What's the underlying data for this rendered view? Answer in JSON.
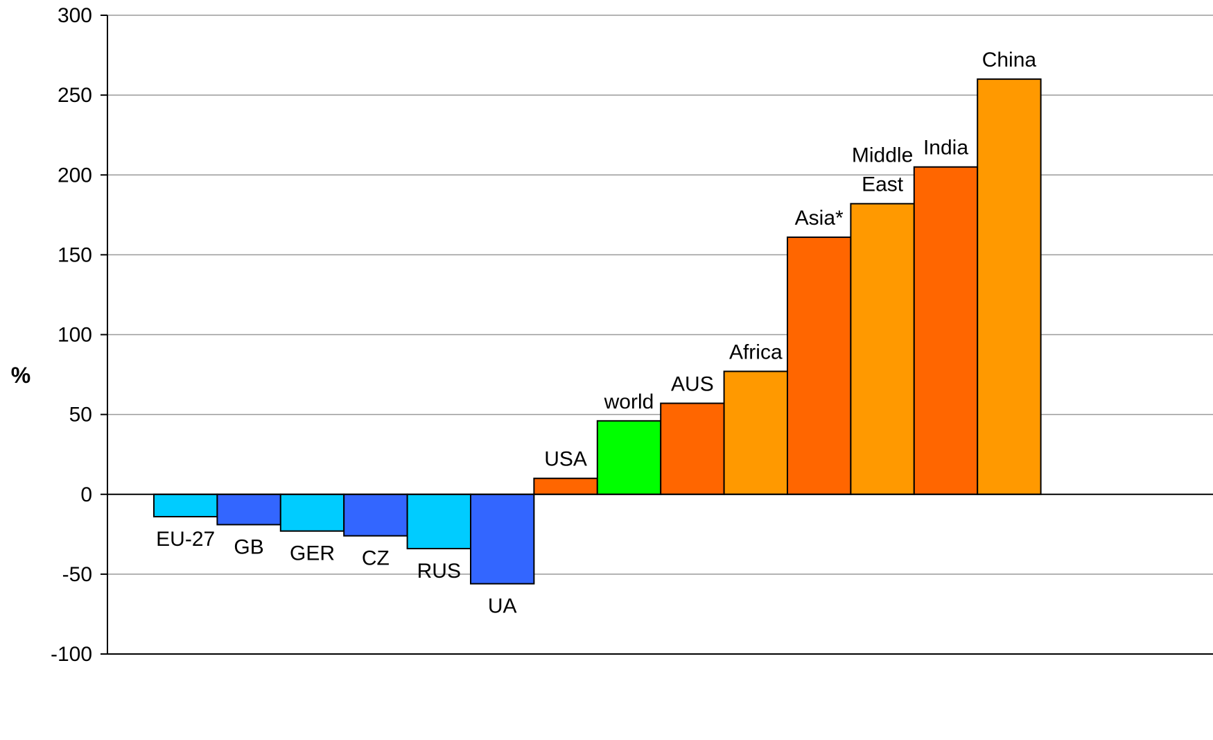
{
  "chart_data": {
    "type": "bar",
    "title": "",
    "xlabel": "",
    "ylabel": "%",
    "ylim": [
      -100,
      300
    ],
    "yticks": [
      300,
      250,
      200,
      150,
      100,
      50,
      0,
      -50,
      -100
    ],
    "grid": true,
    "categories": [
      "EU-27",
      "GB",
      "GER",
      "CZ",
      "RUS",
      "UA",
      "USA",
      "world",
      "AUS",
      "Africa",
      "Asia*",
      "Middle East",
      "India",
      "China"
    ],
    "label_lines": [
      [
        "EU-27"
      ],
      [
        "GB"
      ],
      [
        "GER"
      ],
      [
        "CZ"
      ],
      [
        "RUS"
      ],
      [
        "UA"
      ],
      [
        "USA"
      ],
      [
        "world"
      ],
      [
        "AUS"
      ],
      [
        "Africa"
      ],
      [
        "Asia*"
      ],
      [
        "Middle",
        "East"
      ],
      [
        "India"
      ],
      [
        "China"
      ]
    ],
    "values": [
      -14,
      -19,
      -23,
      -26,
      -34,
      -56,
      10,
      46,
      57,
      77,
      161,
      182,
      205,
      260
    ],
    "colors": [
      "#00CCFF",
      "#3366FF",
      "#00CCFF",
      "#3366FF",
      "#00CCFF",
      "#3366FF",
      "#FF6600",
      "#00FF00",
      "#FF6600",
      "#FF9900",
      "#FF6600",
      "#FF9900",
      "#FF6600",
      "#FF9900"
    ]
  }
}
